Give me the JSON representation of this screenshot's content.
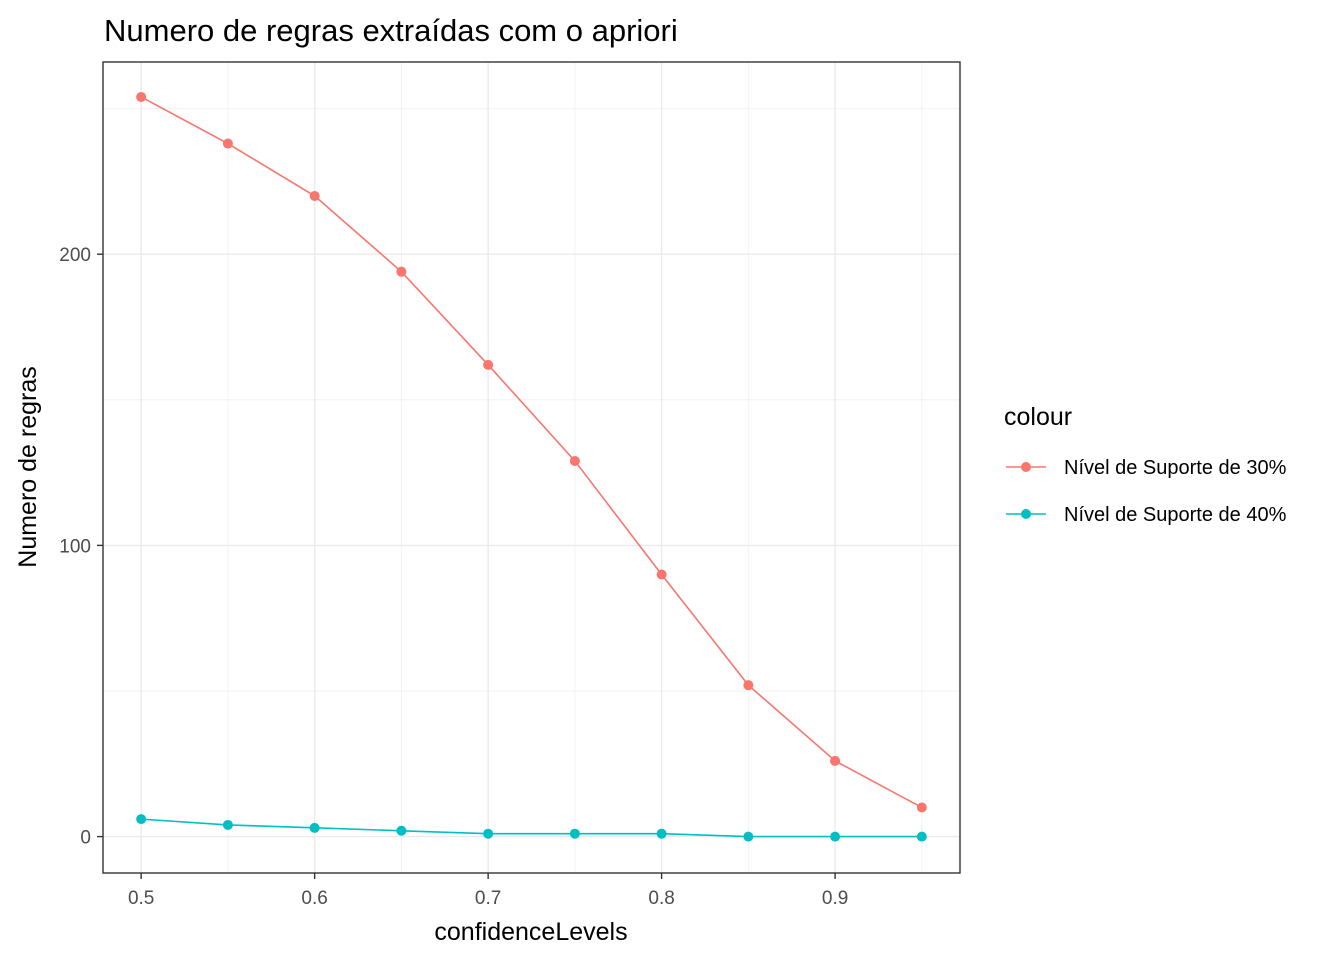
{
  "chart_data": {
    "type": "line",
    "title": "Numero de regras extraídas com o apriori",
    "xlabel": "confidenceLevels",
    "ylabel": "Numero de regras",
    "x": [
      0.5,
      0.55,
      0.6,
      0.65,
      0.7,
      0.75,
      0.8,
      0.85,
      0.9,
      0.95
    ],
    "xlim": [
      0.478,
      0.972
    ],
    "ylim": [
      -12.5,
      266
    ],
    "x_ticks": [
      "0.5",
      "0.6",
      "0.7",
      "0.8",
      "0.9"
    ],
    "y_ticks": [
      "0",
      "100",
      "200"
    ],
    "grid": true,
    "legend": {
      "title": "colour",
      "position": "right"
    },
    "series": [
      {
        "name": "Nível de Suporte de 30%",
        "color": "#f8766d",
        "values": [
          254,
          238,
          220,
          194,
          162,
          129,
          90,
          52,
          26,
          10
        ]
      },
      {
        "name": "Nível de Suporte de 40%",
        "color": "#00bfc4",
        "values": [
          6,
          4,
          3,
          2,
          1,
          1,
          1,
          0,
          0,
          0
        ]
      }
    ]
  }
}
